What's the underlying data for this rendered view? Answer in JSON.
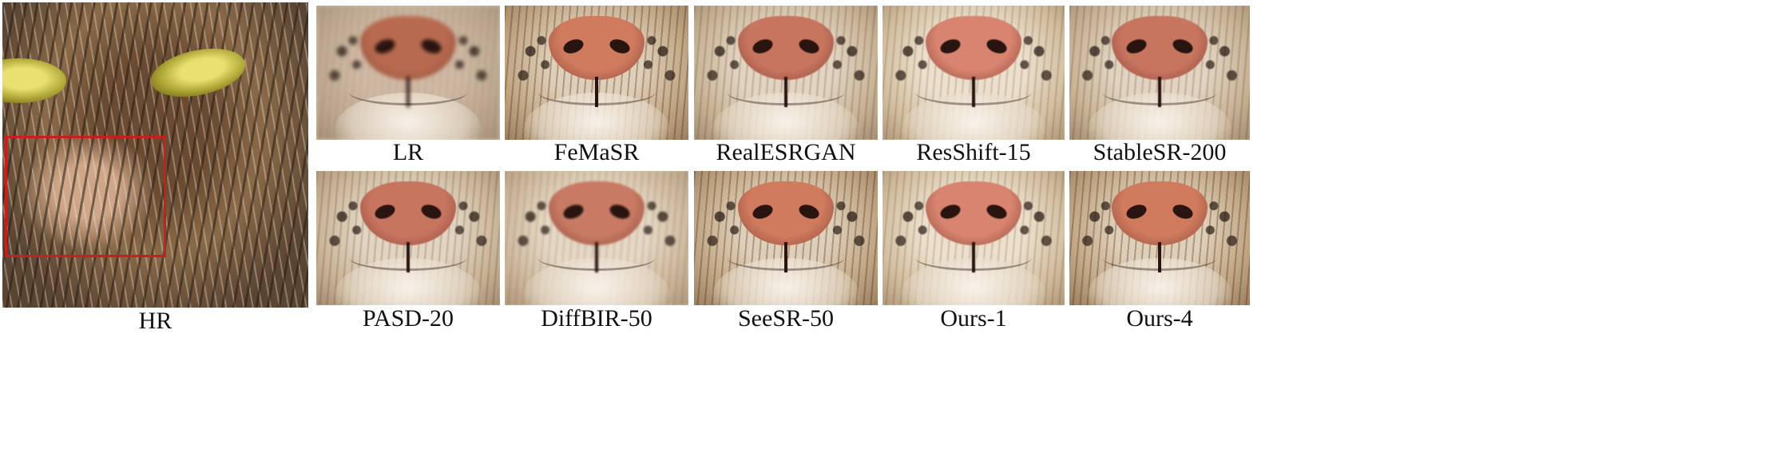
{
  "figure": {
    "hr_label": "HR",
    "highlight_color": "#c81e1e",
    "rows": [
      [
        {
          "label": "LR",
          "tone": "blurred"
        },
        {
          "label": "FeMaSR",
          "tone": "sharp"
        },
        {
          "label": "RealESRGAN",
          "tone": "smooth"
        },
        {
          "label": "ResShift-15",
          "tone": "bright"
        },
        {
          "label": "StableSR-200",
          "tone": "smooth"
        }
      ],
      [
        {
          "label": "PASD-20",
          "tone": "smooth"
        },
        {
          "label": "DiffBIR-50",
          "tone": "soft"
        },
        {
          "label": "SeeSR-50",
          "tone": "sharp"
        },
        {
          "label": "Ours-1",
          "tone": "bright"
        },
        {
          "label": "Ours-4",
          "tone": "sharp"
        }
      ]
    ]
  }
}
